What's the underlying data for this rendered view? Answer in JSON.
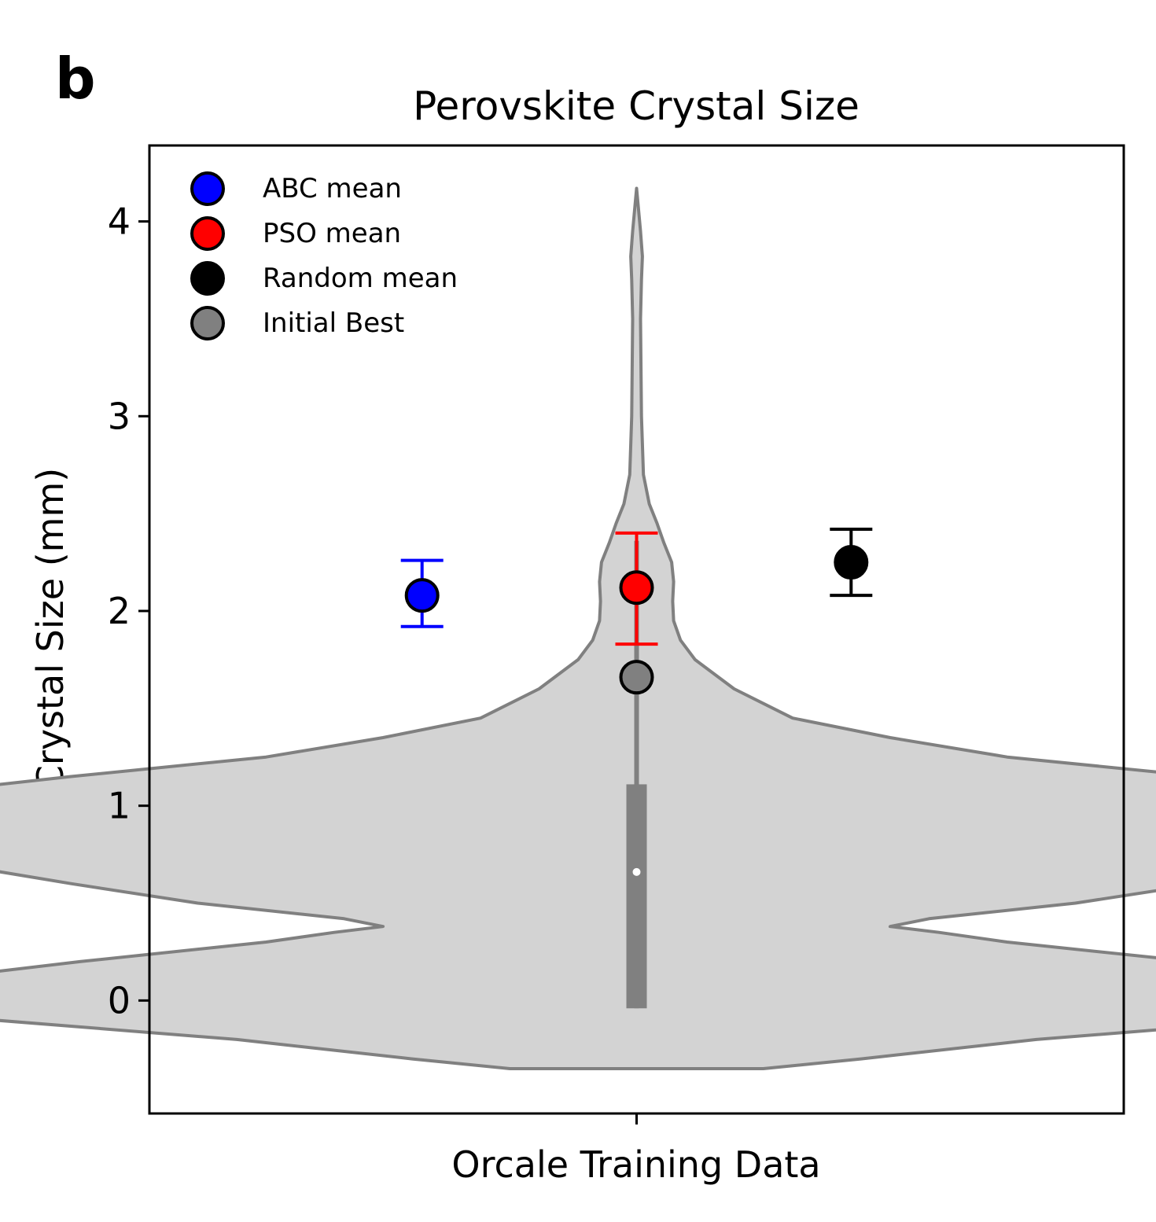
{
  "panel_label": "b",
  "chart_data": {
    "type": "violin",
    "title": "Perovskite Crystal Size",
    "xlabel": "Orcale Training Data",
    "ylabel": "Crystal Size (mm)",
    "ylim": [
      -0.58,
      4.39
    ],
    "yticks": [
      0,
      1,
      2,
      3,
      4
    ],
    "ytick_labels": [
      "0",
      "1",
      "2",
      "3",
      "4"
    ],
    "xticks": [
      0
    ],
    "grid": false,
    "legend_position": "top-left",
    "violin": {
      "color_fill": "#d3d3d3",
      "color_edge": "#808080",
      "profile": [
        [
          -0.35,
          0.13
        ],
        [
          -0.3,
          0.23
        ],
        [
          -0.2,
          0.41
        ],
        [
          -0.1,
          0.66
        ],
        [
          -0.03,
          0.85
        ],
        [
          0.0,
          0.88
        ],
        [
          0.05,
          0.84
        ],
        [
          0.1,
          0.74
        ],
        [
          0.2,
          0.57
        ],
        [
          0.3,
          0.38
        ],
        [
          0.35,
          0.31
        ],
        [
          0.38,
          0.26
        ],
        [
          0.42,
          0.3
        ],
        [
          0.5,
          0.45
        ],
        [
          0.6,
          0.58
        ],
        [
          0.7,
          0.7
        ],
        [
          0.8,
          0.78
        ],
        [
          0.9,
          0.81
        ],
        [
          0.97,
          0.81
        ],
        [
          1.05,
          0.76
        ],
        [
          1.15,
          0.58
        ],
        [
          1.25,
          0.38
        ],
        [
          1.35,
          0.26
        ],
        [
          1.45,
          0.16
        ],
        [
          1.6,
          0.1
        ],
        [
          1.75,
          0.06
        ],
        [
          1.85,
          0.045
        ],
        [
          1.95,
          0.038
        ],
        [
          2.05,
          0.037
        ],
        [
          2.15,
          0.038
        ],
        [
          2.25,
          0.036
        ],
        [
          2.35,
          0.028
        ],
        [
          2.45,
          0.021
        ],
        [
          2.55,
          0.013
        ],
        [
          2.7,
          0.007
        ],
        [
          3.0,
          0.005
        ],
        [
          3.5,
          0.004
        ],
        [
          3.7,
          0.005
        ],
        [
          3.82,
          0.006
        ],
        [
          3.95,
          0.004
        ],
        [
          4.17,
          0.0
        ]
      ],
      "box": {
        "q1": -0.04,
        "median": 0.66,
        "q3": 1.11,
        "whisker_low": -0.04,
        "whisker_high": 2.36
      },
      "median_color": "#ffffff"
    },
    "series": [
      {
        "name": "ABC mean",
        "x": -0.22,
        "y": 2.08,
        "err_low": 1.92,
        "err_high": 2.26,
        "color": "#0000ff"
      },
      {
        "name": "PSO mean",
        "x": 0.0,
        "y": 2.12,
        "err_low": 1.83,
        "err_high": 2.4,
        "color": "#ff0000"
      },
      {
        "name": "Random mean",
        "x": 0.22,
        "y": 2.25,
        "err_low": 2.08,
        "err_high": 2.42,
        "color": "#000000"
      },
      {
        "name": "Initial Best",
        "x": 0.0,
        "y": 1.66,
        "color": "#808080"
      }
    ]
  }
}
